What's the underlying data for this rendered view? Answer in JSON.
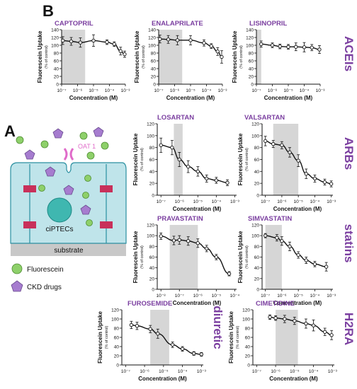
{
  "panel_labels": {
    "a": "A",
    "b": "B"
  },
  "axis_label_y_main": "Fluorescein Uptake",
  "axis_label_y_sub": "(% of control)",
  "axis_label_x": "Concentration (M)",
  "colors": {
    "accent": "#7b3fa0",
    "shade": "#d6d6d6",
    "cell": "#bfe4ea",
    "cell_stroke": "#2a8fa0",
    "junction": "#c8305a",
    "fluorescein": "#8ed06a",
    "drug": "#a67ccf",
    "transporter": "#e06bc9"
  },
  "groups": [
    {
      "text": "ACEIs"
    },
    {
      "text": "ARBs"
    },
    {
      "text": "statins"
    },
    {
      "text": "diuretic"
    },
    {
      "text": "H2RA"
    }
  ],
  "schematic": {
    "transporter_label": "OAT 1",
    "cell_label": "ciPTECs",
    "substrate_label": "substrate",
    "legend": [
      {
        "icon": "fluorescein-circle-icon",
        "label": "Fluorescein"
      },
      {
        "icon": "ckd-drug-pentagon-icon",
        "label": "CKD drugs"
      }
    ]
  },
  "chart_data": [
    {
      "type": "line",
      "title": "CAPTOPRIL",
      "xlabel": "Concentration (M)",
      "ylabel": "Fluorescein Uptake (% of control)",
      "x_scale": "log",
      "x_ticks": [
        "10⁻⁷",
        "10⁻⁶",
        "10⁻⁵",
        "10⁻⁴",
        "10⁻³"
      ],
      "y_ticks": [
        "0",
        "20",
        "40",
        "60",
        "80",
        "100",
        "120",
        "140"
      ],
      "ylim": [
        0,
        140
      ],
      "shaded_range": [
        1e-07,
        3e-06
      ],
      "x": [
        1.2e-07,
        4e-07,
        1.5e-06,
        1e-05,
        7e-05,
        0.0002,
        0.0005,
        0.0009
      ],
      "y": [
        112,
        110,
        107,
        112,
        108,
        103,
        85,
        77
      ],
      "err": [
        10,
        10,
        12,
        15,
        6,
        6,
        10,
        8
      ]
    },
    {
      "type": "line",
      "title": "ENALAPRILATE",
      "xlabel": "Concentration (M)",
      "ylabel": "Fluorescein Uptake (% of control)",
      "x_scale": "log",
      "x_ticks": [
        "10⁻⁷",
        "10⁻⁶",
        "10⁻⁵",
        "10⁻⁴",
        "10⁻³"
      ],
      "y_ticks": [
        "0",
        "20",
        "40",
        "60",
        "80",
        "100",
        "120",
        "140"
      ],
      "ylim": [
        0,
        140
      ],
      "shaded_range": [
        1e-07,
        3e-06
      ],
      "x": [
        1.2e-07,
        4e-07,
        1.5e-06,
        1e-05,
        7e-05,
        0.0002,
        0.0005,
        0.0009
      ],
      "y": [
        116,
        115,
        113,
        113,
        106,
        98,
        84,
        70
      ],
      "err": [
        10,
        10,
        12,
        12,
        8,
        6,
        10,
        16
      ]
    },
    {
      "type": "line",
      "title": "LISINOPRIL",
      "xlabel": "Concentration (M)",
      "ylabel": "Fluorescein Uptake (% of control)",
      "x_scale": "log",
      "x_ticks": [
        "10⁻⁷",
        "10⁻⁶",
        "10⁻⁵",
        "10⁻⁴",
        "10⁻³"
      ],
      "y_ticks": [
        "0",
        "20",
        "40",
        "60",
        "80",
        "100",
        "120",
        "140"
      ],
      "ylim": [
        0,
        140
      ],
      "shaded_range": [
        1e-07,
        2e-07
      ],
      "x": [
        2e-07,
        1e-06,
        3e-06,
        1e-05,
        3e-05,
        0.0001,
        0.0003,
        0.0009
      ],
      "y": [
        103,
        100,
        97,
        96,
        96,
        95,
        94,
        89
      ],
      "err": [
        8,
        6,
        6,
        6,
        10,
        12,
        8,
        10
      ]
    },
    {
      "type": "line",
      "title": "LOSARTAN",
      "xlabel": "Concentration (M)",
      "ylabel": "Fluorescein Uptake (% of control)",
      "x_scale": "log",
      "x_ticks": [
        "10⁻⁷",
        "10⁻⁶",
        "10⁻⁵",
        "10⁻⁴",
        "10⁻³"
      ],
      "y_ticks": [
        "0",
        "20",
        "40",
        "60",
        "80",
        "100",
        "120"
      ],
      "ylim": [
        0,
        120
      ],
      "shaded_range": [
        5e-07,
        1.5e-06
      ],
      "x": [
        1e-07,
        4e-07,
        1e-06,
        3e-06,
        1e-05,
        3e-05,
        0.0001,
        0.0004
      ],
      "y": [
        84,
        80,
        60,
        48,
        40,
        28,
        25,
        21
      ],
      "err": [
        12,
        12,
        12,
        10,
        8,
        6,
        5,
        5
      ]
    },
    {
      "type": "line",
      "title": "VALSARTAN",
      "xlabel": "Concentration (M)",
      "ylabel": "Fluorescein Uptake (% of control)",
      "x_scale": "log",
      "x_ticks": [
        "10⁻⁷",
        "10⁻⁶",
        "10⁻⁵",
        "10⁻⁴",
        "10⁻³"
      ],
      "y_ticks": [
        "0",
        "20",
        "40",
        "60",
        "80",
        "100",
        "120"
      ],
      "ylim": [
        0,
        120
      ],
      "shaded_range": [
        3e-07,
        1e-05
      ],
      "x": [
        1e-07,
        3e-07,
        1e-06,
        3e-06,
        1e-05,
        3e-05,
        0.0001,
        0.0004,
        0.001
      ],
      "y": [
        91,
        86,
        84,
        72,
        58,
        36,
        28,
        22,
        19
      ],
      "err": [
        8,
        6,
        6,
        8,
        10,
        8,
        6,
        5,
        5
      ]
    },
    {
      "type": "line",
      "title": "PRAVASTATIN",
      "xlabel": "Concentration (M)",
      "ylabel": "Fluorescein Uptake (% of control)",
      "x_scale": "log",
      "x_ticks": [
        "10⁻⁸",
        "10⁻⁷",
        "10⁻⁶",
        "10⁻⁵",
        "10⁻⁴"
      ],
      "y_ticks": [
        "0",
        "20",
        "40",
        "60",
        "80",
        "100",
        "120"
      ],
      "ylim": [
        0,
        120
      ],
      "shaded_range": [
        3e-08,
        1e-06
      ],
      "x": [
        1e-08,
        5e-08,
        1e-07,
        3e-07,
        1e-06,
        3e-06,
        1e-05,
        5e-05
      ],
      "y": [
        99,
        91,
        92,
        90,
        86,
        76,
        60,
        29
      ],
      "err": [
        6,
        8,
        8,
        8,
        8,
        6,
        5,
        4
      ]
    },
    {
      "type": "line",
      "title": "SIMVASTATIN",
      "xlabel": "Concentration (M)",
      "ylabel": "Fluorescein Uptake (% of control)",
      "x_scale": "log",
      "x_ticks": [
        "10⁻⁷",
        "10⁻⁶",
        "10⁻⁵",
        "10⁻⁴",
        "10⁻³"
      ],
      "y_ticks": [
        "0",
        "20",
        "40",
        "60",
        "80",
        "100",
        "120"
      ],
      "ylim": [
        0,
        120
      ],
      "shaded_range": [
        1e-07,
        1e-06
      ],
      "x": [
        1e-07,
        5e-07,
        1e-06,
        3e-06,
        1e-05,
        3e-05,
        0.0001,
        0.0005
      ],
      "y": [
        100,
        96,
        90,
        80,
        64,
        54,
        47,
        42
      ],
      "err": [
        4,
        6,
        8,
        8,
        6,
        6,
        5,
        8
      ]
    },
    {
      "type": "line",
      "title": "FUROSEMIDE",
      "xlabel": "Concentration (M)",
      "ylabel": "Fluorescein Uptake (% of control)",
      "x_scale": "log",
      "x_ticks": [
        "10⁻⁷",
        "10⁻⁶",
        "10⁻⁵",
        "10⁻⁴",
        "10⁻³"
      ],
      "y_ticks": [
        "0",
        "20",
        "40",
        "60",
        "80",
        "100",
        "120"
      ],
      "ylim": [
        0,
        120
      ],
      "shaded_range": [
        2e-06,
        2e-05
      ],
      "x": [
        2e-07,
        4e-07,
        2e-06,
        5e-06,
        3e-05,
        0.0001,
        0.0004,
        0.001
      ],
      "y": [
        87,
        85,
        78,
        68,
        44,
        35,
        25,
        23
      ],
      "err": [
        8,
        8,
        8,
        10,
        6,
        5,
        4,
        4
      ]
    },
    {
      "type": "line",
      "title": "CIMETIDINE",
      "xlabel": "Concentration (M)",
      "ylabel": "Fluorescein Uptake (% of control)",
      "x_scale": "log",
      "x_ticks": [
        "10⁻⁷",
        "10⁻⁶",
        "10⁻⁵",
        "10⁻⁴",
        "10⁻³"
      ],
      "y_ticks": [
        "0",
        "20",
        "40",
        "60",
        "80",
        "100",
        "120"
      ],
      "ylim": [
        0,
        120
      ],
      "shaded_range": [
        1e-06,
        1.5e-05
      ],
      "x": [
        5e-07,
        1e-06,
        3e-06,
        1e-05,
        4e-05,
        0.0001,
        0.0004,
        0.0009
      ],
      "y": [
        104,
        102,
        100,
        96,
        90,
        86,
        72,
        65
      ],
      "err": [
        5,
        5,
        8,
        8,
        10,
        12,
        8,
        10
      ]
    }
  ]
}
